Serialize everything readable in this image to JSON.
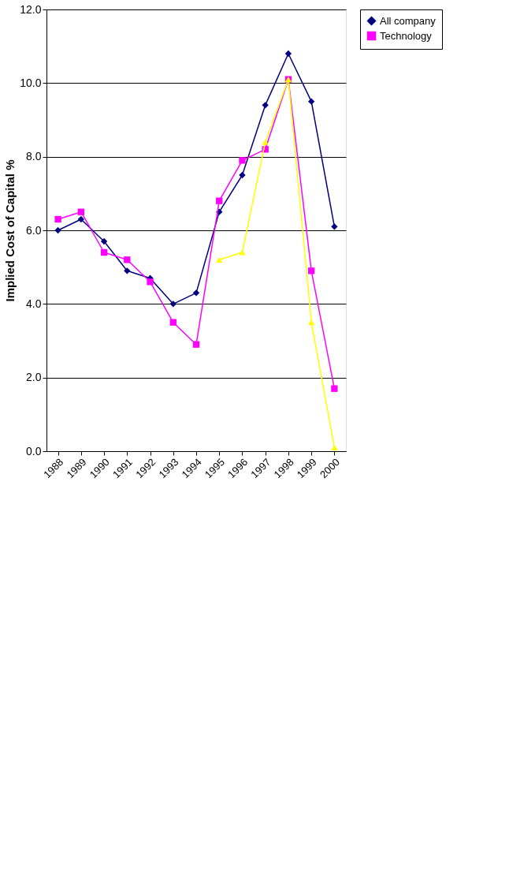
{
  "chart_data": {
    "type": "line",
    "ylabel": "Implied Cost of Capital %",
    "categories": [
      "1988",
      "1989",
      "1990",
      "1991",
      "1992",
      "1993",
      "1994",
      "1995",
      "1996",
      "1997",
      "1998",
      "1999",
      "2000"
    ],
    "series": [
      {
        "name": "All company",
        "color": "#000080",
        "marker": "diamond",
        "values": [
          6.0,
          6.3,
          5.7,
          4.9,
          4.7,
          4.0,
          4.3,
          6.5,
          7.5,
          9.4,
          10.8,
          9.5,
          6.1
        ]
      },
      {
        "name": "Technology",
        "color": "#ff00ff",
        "marker": "square",
        "values": [
          6.3,
          6.5,
          5.4,
          5.2,
          4.6,
          3.5,
          2.9,
          6.8,
          7.9,
          8.2,
          10.1,
          4.9,
          1.7
        ]
      },
      {
        "color": "#ffff00",
        "marker": "triangle",
        "values": [
          null,
          null,
          null,
          null,
          null,
          null,
          null,
          5.2,
          5.4,
          8.4,
          10.1,
          3.5,
          0.1
        ]
      }
    ],
    "ylim": [
      0,
      12
    ],
    "yticks": [
      {
        "value": 0,
        "label": "0.0"
      },
      {
        "value": 2,
        "label": "2.0"
      },
      {
        "value": 4,
        "label": "4.0"
      },
      {
        "value": 6,
        "label": "6.0"
      },
      {
        "value": 8,
        "label": "8.0"
      },
      {
        "value": 10,
        "label": "10.0"
      },
      {
        "value": 12,
        "label": "12.0"
      }
    ],
    "grid": "y",
    "legend": "right"
  }
}
